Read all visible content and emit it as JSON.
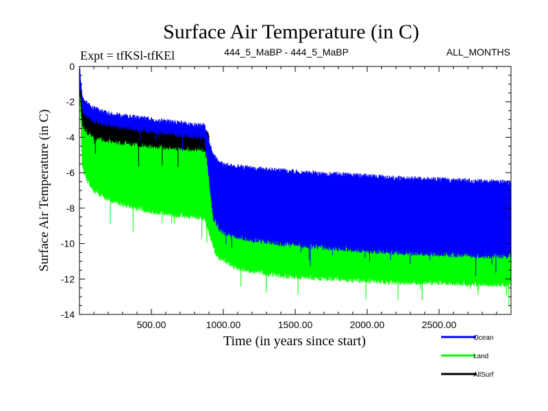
{
  "chart_data": {
    "type": "line",
    "title": "Surface Air Temperature (in C)",
    "subtitle_left": "Expt = tfKSl-tfKEl",
    "subtitle_center": "444_5_MaBP - 444_5_MaBP",
    "subtitle_right": "ALL_MONTHS",
    "xlabel": "Time (in years since start)",
    "ylabel": "Surface Air Temperature (in C)",
    "xlim": [
      0,
      3000
    ],
    "ylim": [
      -14,
      0
    ],
    "x_ticks": [
      {
        "value": 500,
        "label": "500.00"
      },
      {
        "value": 1000,
        "label": "1000.00"
      },
      {
        "value": 1500,
        "label": "1500.00"
      },
      {
        "value": 2000,
        "label": "2000.00"
      },
      {
        "value": 2500,
        "label": "2500.00"
      }
    ],
    "y_ticks": [
      {
        "value": 0,
        "label": "0"
      },
      {
        "value": -2,
        "label": "-2"
      },
      {
        "value": -4,
        "label": "-4"
      },
      {
        "value": -6,
        "label": "-6"
      },
      {
        "value": -8,
        "label": "-8"
      },
      {
        "value": -10,
        "label": "-10"
      },
      {
        "value": -12,
        "label": "-12"
      },
      {
        "value": -14,
        "label": "-14"
      }
    ],
    "series": [
      {
        "name": "Land",
        "color": "#00ff00",
        "envelope": {
          "x": [
            0,
            20,
            50,
            100,
            200,
            300,
            400,
            500,
            600,
            700,
            800,
            870,
            950,
            1100,
            1300,
            1500,
            1800,
            2000,
            2200,
            2500,
            2800,
            3000
          ],
          "upper": [
            -0.6,
            -2.5,
            -3.0,
            -3.4,
            -3.7,
            -3.9,
            -4.0,
            -4.1,
            -4.2,
            -4.3,
            -4.4,
            -4.5,
            -8.6,
            -9.4,
            -9.8,
            -10.0,
            -10.2,
            -10.3,
            -10.4,
            -10.5,
            -10.6,
            -10.6
          ],
          "lower": [
            -0.8,
            -5.5,
            -6.2,
            -6.8,
            -7.3,
            -7.6,
            -7.8,
            -8.0,
            -8.1,
            -8.2,
            -8.3,
            -8.4,
            -10.5,
            -11.2,
            -11.5,
            -11.7,
            -11.8,
            -11.9,
            -12.0,
            -12.0,
            -12.1,
            -12.1
          ]
        }
      },
      {
        "name": "AllSurf",
        "color": "#000000",
        "envelope": {
          "x": [
            0,
            20,
            50,
            100,
            200,
            300,
            400,
            500,
            600,
            700,
            800,
            870,
            900
          ],
          "upper": [
            -0.6,
            -2.2,
            -2.6,
            -2.9,
            -3.1,
            -3.25,
            -3.35,
            -3.45,
            -3.55,
            -3.6,
            -3.7,
            -3.8,
            -4.0
          ],
          "lower": [
            -0.8,
            -3.1,
            -3.5,
            -3.8,
            -4.0,
            -4.1,
            -4.2,
            -4.3,
            -4.35,
            -4.4,
            -4.45,
            -4.5,
            -4.6
          ]
        }
      },
      {
        "name": "Ocean",
        "color": "#0000ff",
        "envelope": {
          "x": [
            0,
            20,
            50,
            100,
            200,
            300,
            400,
            500,
            600,
            700,
            800,
            870,
            930,
            1000,
            1200,
            1500,
            1800,
            2000,
            2200,
            2500,
            2800,
            3000
          ],
          "upper": [
            0,
            -1.9,
            -2.2,
            -2.5,
            -2.8,
            -2.95,
            -3.05,
            -3.15,
            -3.25,
            -3.35,
            -3.45,
            -3.5,
            -5.2,
            -5.7,
            -5.9,
            -6.1,
            -6.25,
            -6.35,
            -6.45,
            -6.55,
            -6.65,
            -6.7
          ],
          "lower": [
            -0.5,
            -2.3,
            -2.6,
            -2.9,
            -3.1,
            -3.25,
            -3.35,
            -3.45,
            -3.55,
            -3.65,
            -3.75,
            -3.8,
            -8.4,
            -9.2,
            -9.6,
            -9.9,
            -10.1,
            -10.2,
            -10.3,
            -10.4,
            -10.5,
            -10.5
          ]
        }
      }
    ],
    "legend": {
      "placement": "bottom-right",
      "entries": [
        {
          "name": "Ocean",
          "color": "#0000ff"
        },
        {
          "name": "Land",
          "color": "#00ff00"
        },
        {
          "name": "AllSurf",
          "color": "#000000"
        }
      ]
    }
  }
}
